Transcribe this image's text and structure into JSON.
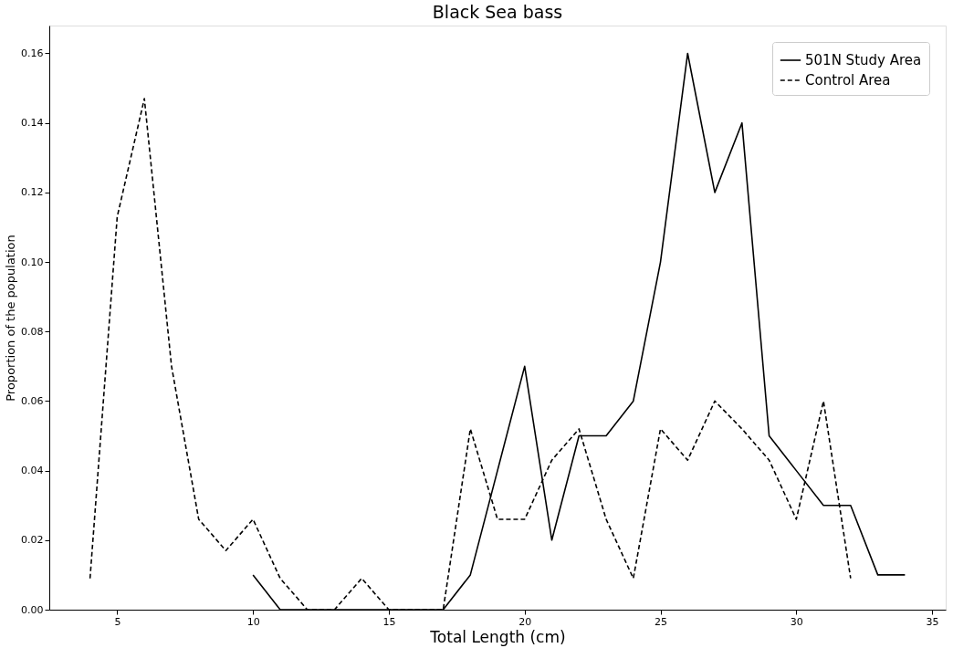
{
  "chart_data": {
    "type": "line",
    "title": "Black Sea bass",
    "xlabel": "Total Length (cm)",
    "ylabel": "Proportion of the population",
    "xlim": [
      2.5,
      35.5
    ],
    "xticks": [
      5,
      10,
      15,
      20,
      25,
      30,
      35
    ],
    "ylim": [
      0,
      0.168
    ],
    "yticks": [
      {
        "value": 0,
        "label": "0.00"
      },
      {
        "value": 0.02,
        "label": "0.02"
      },
      {
        "value": 0.04,
        "label": "0.04"
      },
      {
        "value": 0.06,
        "label": "0.06"
      },
      {
        "value": 0.08,
        "label": "0.08"
      },
      {
        "value": 0.1,
        "label": "0.10"
      },
      {
        "value": 0.12,
        "label": "0.12"
      },
      {
        "value": 0.14,
        "label": "0.14"
      },
      {
        "value": 0.16,
        "label": "0.16"
      }
    ],
    "grid": false,
    "legend": "top right",
    "series": [
      {
        "name": "501N Study Area",
        "color": "#000000",
        "line_style": "solid",
        "x": [
          10,
          11,
          12,
          13,
          14,
          15,
          16,
          17,
          18,
          19,
          20,
          21,
          22,
          23,
          24,
          25,
          26,
          27,
          28,
          29,
          30,
          31,
          32,
          33,
          34
        ],
        "values": [
          0.01,
          0,
          0,
          0,
          0,
          0,
          0,
          0,
          0.01,
          0.04,
          0.07,
          0.02,
          0.05,
          0.05,
          0.06,
          0.1,
          0.16,
          0.12,
          0.14,
          0.05,
          0.04,
          0.03,
          0.03,
          0.01,
          0.01
        ]
      },
      {
        "name": "Control Area",
        "color": "#000000",
        "line_style": "dashed",
        "x": [
          4,
          5,
          6,
          7,
          8,
          9,
          10,
          11,
          12,
          13,
          14,
          15,
          16,
          17,
          18,
          19,
          20,
          21,
          22,
          23,
          24,
          25,
          26,
          27,
          28,
          29,
          30,
          31,
          32
        ],
        "values": [
          0.009,
          0.113,
          0.147,
          0.07,
          0.026,
          0.017,
          0.026,
          0.009,
          0,
          0,
          0.009,
          0,
          0,
          0,
          0.052,
          0.026,
          0.026,
          0.043,
          0.052,
          0.026,
          0.009,
          0.052,
          0.043,
          0.06,
          0.052,
          0.043,
          0.026,
          0.06,
          0.009
        ]
      }
    ]
  }
}
